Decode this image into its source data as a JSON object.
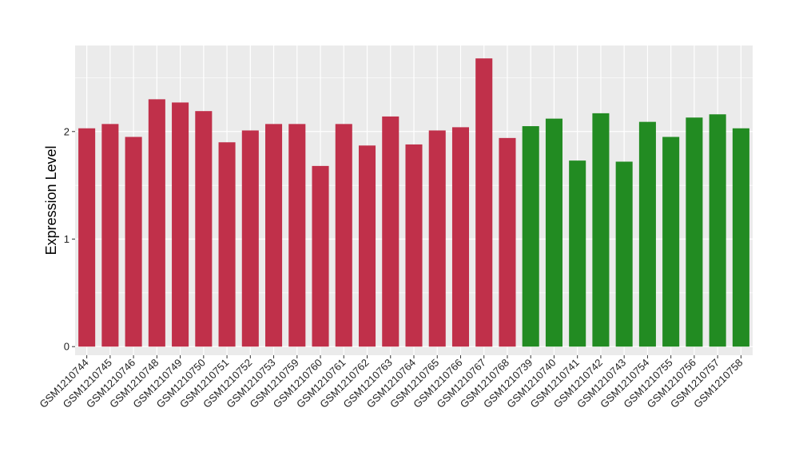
{
  "chart_data": {
    "type": "bar",
    "title": "",
    "xlabel": "",
    "ylabel": "Expression Level",
    "ylim": [
      -0.08,
      2.8
    ],
    "yticks": [
      0,
      1,
      2
    ],
    "grid": true,
    "categories": [
      "GSM1210744",
      "GSM1210745",
      "GSM1210746",
      "GSM1210748",
      "GSM1210749",
      "GSM1210750",
      "GSM1210751",
      "GSM1210752",
      "GSM1210753",
      "GSM1210759",
      "GSM1210760",
      "GSM1210761",
      "GSM1210762",
      "GSM1210763",
      "GSM1210764",
      "GSM1210765",
      "GSM1210766",
      "GSM1210767",
      "GSM1210768",
      "GSM1210739",
      "GSM1210740",
      "GSM1210741",
      "GSM1210742",
      "GSM1210743",
      "GSM1210754",
      "GSM1210755",
      "GSM1210756",
      "GSM1210757",
      "GSM1210758"
    ],
    "values": [
      2.03,
      2.07,
      1.95,
      2.3,
      2.27,
      2.19,
      1.9,
      2.01,
      2.07,
      2.07,
      1.68,
      2.07,
      1.87,
      2.14,
      1.88,
      2.01,
      2.04,
      2.68,
      1.94,
      2.05,
      2.12,
      1.73,
      2.17,
      1.72,
      2.09,
      1.95,
      2.13,
      2.16,
      2.03
    ],
    "bar_colors": [
      "#c0304a",
      "#c0304a",
      "#c0304a",
      "#c0304a",
      "#c0304a",
      "#c0304a",
      "#c0304a",
      "#c0304a",
      "#c0304a",
      "#c0304a",
      "#c0304a",
      "#c0304a",
      "#c0304a",
      "#c0304a",
      "#c0304a",
      "#c0304a",
      "#c0304a",
      "#c0304a",
      "#c0304a",
      "#228b22",
      "#228b22",
      "#228b22",
      "#228b22",
      "#228b22",
      "#228b22",
      "#228b22",
      "#228b22",
      "#228b22",
      "#228b22"
    ],
    "panel_background": "#ebebeb",
    "grid_color": "#ffffff"
  }
}
